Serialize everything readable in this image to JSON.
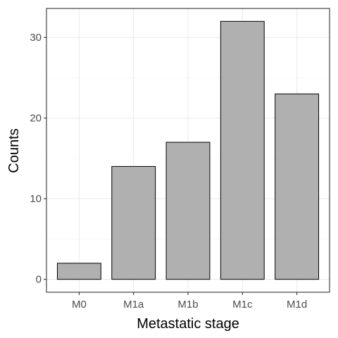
{
  "chart_data": {
    "type": "bar",
    "title": "",
    "xlabel": "Metastatic stage",
    "ylabel": "Counts",
    "categories": [
      "M0",
      "M1a",
      "M1b",
      "M1c",
      "M1d"
    ],
    "values": [
      2,
      14,
      17,
      32,
      23
    ],
    "ylim": [
      -1.6,
      33.6
    ],
    "yticks": [
      0,
      10,
      20,
      30
    ],
    "grid": true,
    "legend": "none",
    "colors": {
      "bar_fill": "#b0b0b0",
      "bar_stroke": "#000000",
      "panel_border": "#333333",
      "grid_major": "#ebebeb",
      "grid_minor": "#f5f5f5"
    }
  }
}
